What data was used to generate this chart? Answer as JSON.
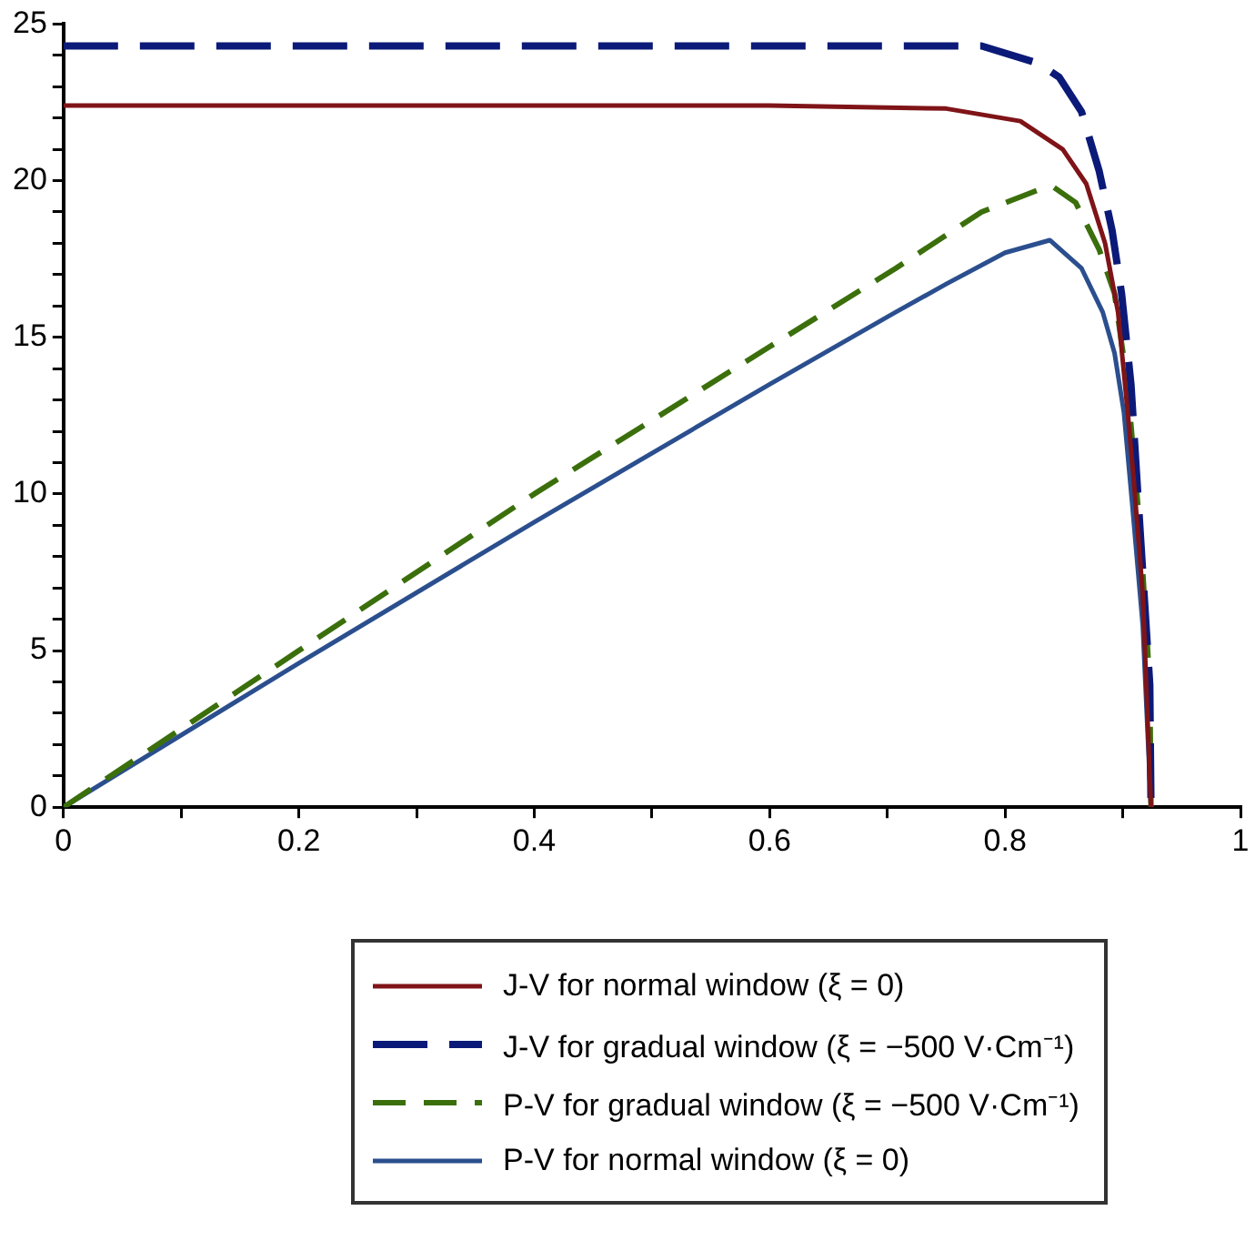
{
  "chart_data": {
    "type": "line",
    "xlim": [
      0,
      1
    ],
    "ylim": [
      0,
      25
    ],
    "xticks": [
      0,
      {
        "value": 0.1,
        "label": null
      },
      0.2,
      {
        "value": 0.3,
        "label": null
      },
      0.4,
      {
        "value": 0.5,
        "label": null
      },
      0.6,
      {
        "value": 0.7,
        "label": null
      },
      0.8,
      {
        "value": 0.9,
        "label": null
      },
      1
    ],
    "yticks": [
      0,
      {
        "value": 1,
        "label": null
      },
      {
        "value": 2,
        "label": null
      },
      {
        "value": 3,
        "label": null
      },
      {
        "value": 4,
        "label": null
      },
      5,
      {
        "value": 6,
        "label": null
      },
      {
        "value": 7,
        "label": null
      },
      {
        "value": 8,
        "label": null
      },
      {
        "value": 9,
        "label": null
      },
      10,
      {
        "value": 11,
        "label": null
      },
      {
        "value": 12,
        "label": null
      },
      {
        "value": 13,
        "label": null
      },
      {
        "value": 14,
        "label": null
      },
      15,
      {
        "value": 16,
        "label": null
      },
      {
        "value": 17,
        "label": null
      },
      {
        "value": 18,
        "label": null
      },
      {
        "value": 19,
        "label": null
      },
      20,
      {
        "value": 21,
        "label": null
      },
      {
        "value": 22,
        "label": null
      },
      {
        "value": 23,
        "label": null
      },
      {
        "value": 24,
        "label": null
      },
      25
    ],
    "grid": false,
    "legend": "bottom",
    "marker": "none",
    "series": [
      {
        "name": "J-V for normal window (ξ = 0)",
        "color": "#7f1418",
        "line_style": "solid",
        "x": [
          0,
          0.2,
          0.4,
          0.6,
          0.75,
          0.813,
          0.849,
          0.869,
          0.885,
          0.896,
          0.904,
          0.909,
          0.917,
          0.924
        ],
        "values": [
          22.4,
          22.4,
          22.4,
          22.4,
          22.3,
          21.9,
          21.0,
          19.9,
          18.0,
          15.8,
          12.7,
          10.6,
          6.8,
          0
        ]
      },
      {
        "name": "J-V for gradual window (ξ = −500 V·Cm⁻¹)",
        "color": "#0b1a78",
        "line_style": "dashed",
        "x": [
          0,
          0.2,
          0.4,
          0.6,
          0.78,
          0.828,
          0.846,
          0.865,
          0.88,
          0.891,
          0.899,
          0.907,
          0.915,
          0.923,
          0.924
        ],
        "values": [
          24.3,
          24.3,
          24.3,
          24.3,
          24.3,
          23.75,
          23.3,
          22.2,
          20.3,
          18.4,
          16.4,
          13.5,
          8.7,
          3.9,
          0
        ]
      },
      {
        "name": "P-V for gradual window (ξ = −500 V·Cm⁻¹)",
        "color": "#3b6f0c",
        "line_style": "dashed",
        "x": [
          0,
          0.2,
          0.4,
          0.6,
          0.707,
          0.78,
          0.828,
          0.841,
          0.86,
          0.88,
          0.893,
          0.904,
          0.915,
          0.923,
          0.924
        ],
        "values": [
          0,
          5.0,
          10.0,
          14.7,
          17.2,
          19.0,
          19.7,
          19.8,
          19.3,
          17.8,
          16.4,
          13.5,
          8.7,
          3.9,
          0
        ]
      },
      {
        "name": "P-V for normal window (ξ = 0)",
        "color": "#2b4f8e",
        "line_style": "solid",
        "x": [
          0,
          0.2,
          0.4,
          0.6,
          0.707,
          0.75,
          0.8,
          0.838,
          0.865,
          0.883,
          0.893,
          0.901,
          0.908,
          0.917,
          0.924
        ],
        "values": [
          0,
          4.6,
          9.1,
          13.5,
          15.8,
          16.7,
          17.7,
          18.1,
          17.2,
          15.8,
          14.5,
          12.6,
          9.7,
          5.8,
          0
        ]
      }
    ]
  }
}
